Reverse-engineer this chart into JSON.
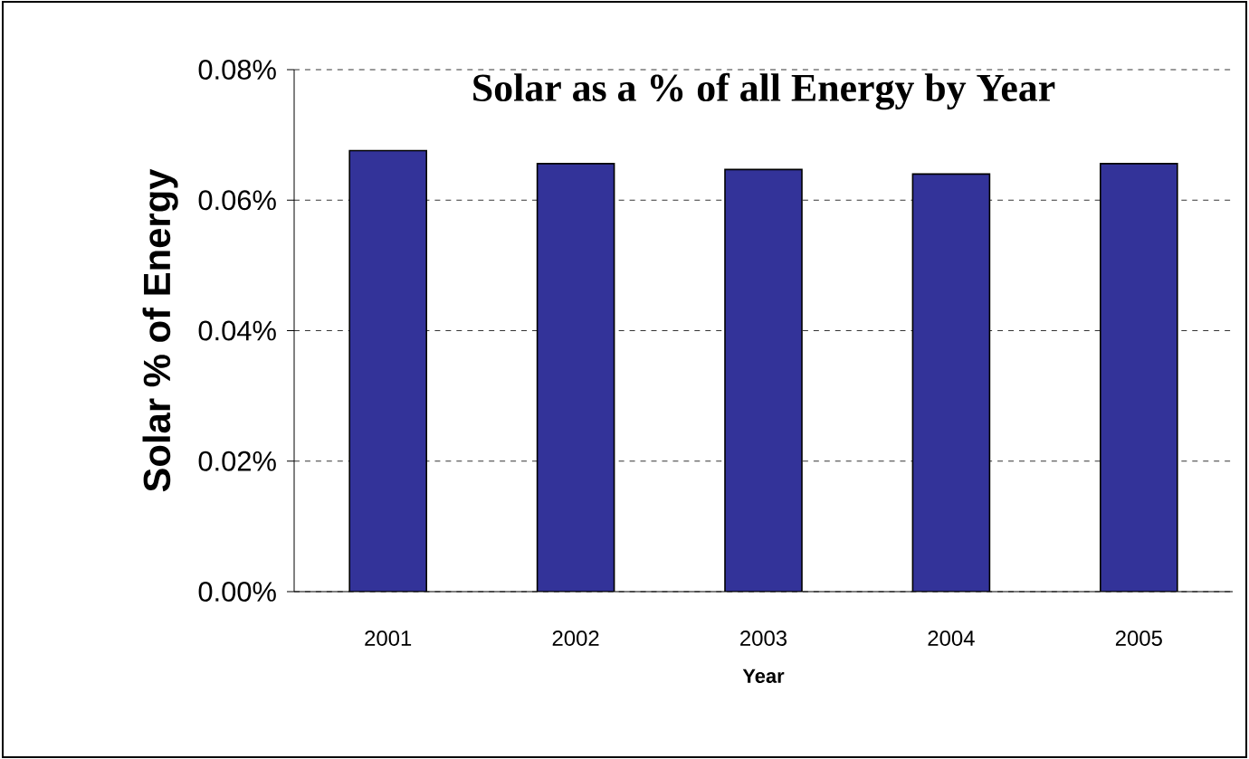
{
  "chart_data": {
    "type": "bar",
    "title": "Solar as a % of all Energy by Year",
    "xlabel": "Year",
    "ylabel": "Solar % of Energy",
    "categories": [
      "2001",
      "2002",
      "2003",
      "2004",
      "2005"
    ],
    "values": [
      0.0676,
      0.0656,
      0.0647,
      0.064,
      0.0656
    ],
    "color": "#333399",
    "ylim": [
      0,
      0.08
    ],
    "yticks": [
      {
        "value": 0,
        "label": "0.00%"
      },
      {
        "value": 0.02,
        "label": "0.02%"
      },
      {
        "value": 0.04,
        "label": "0.04%"
      },
      {
        "value": 0.06,
        "label": "0.06%"
      },
      {
        "value": 0.08,
        "label": "0.08%"
      }
    ],
    "grid": "y"
  }
}
